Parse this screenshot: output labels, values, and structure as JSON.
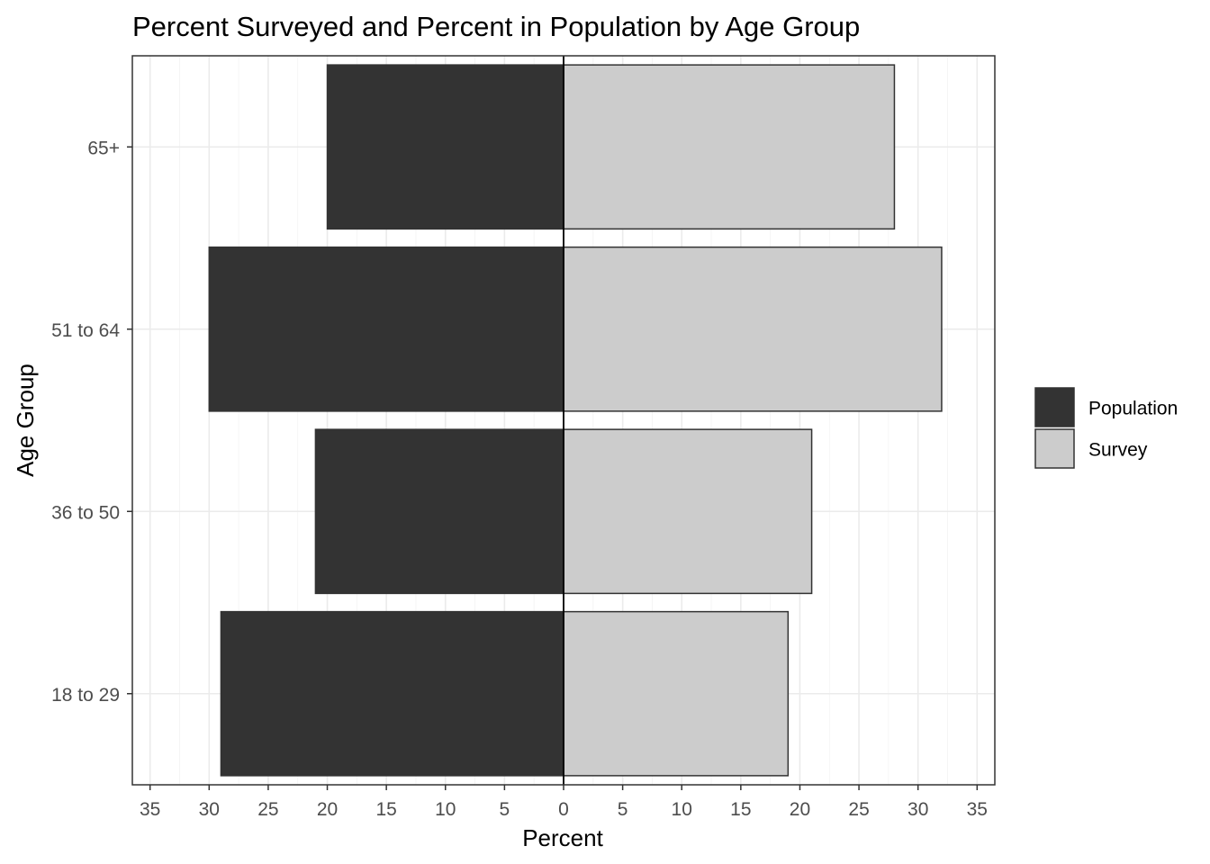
{
  "chart_data": {
    "type": "bar",
    "orientation": "horizontal",
    "layout": "diverging",
    "title": "Percent Surveyed and Percent in Population by Age Group",
    "xlabel": "Percent",
    "ylabel": "Age Group",
    "categories": [
      "18 to 29",
      "36 to 50",
      "51 to 64",
      "65+"
    ],
    "series": [
      {
        "name": "Population",
        "side": "left",
        "color": "#333333",
        "values": [
          29,
          21,
          30,
          20
        ]
      },
      {
        "name": "Survey",
        "side": "right",
        "color": "#cccccc",
        "values": [
          19,
          21,
          32,
          28
        ]
      }
    ],
    "xlim": [
      -36.5,
      36.5
    ],
    "x_ticks": [
      -35,
      -30,
      -25,
      -20,
      -15,
      -10,
      -5,
      0,
      5,
      10,
      15,
      20,
      25,
      30,
      35
    ],
    "x_tick_labels": [
      "35",
      "30",
      "25",
      "20",
      "15",
      "10",
      "5",
      "0",
      "5",
      "10",
      "15",
      "20",
      "25",
      "30",
      "35"
    ],
    "grid": true,
    "legend_position": "right",
    "zero_line": true
  }
}
